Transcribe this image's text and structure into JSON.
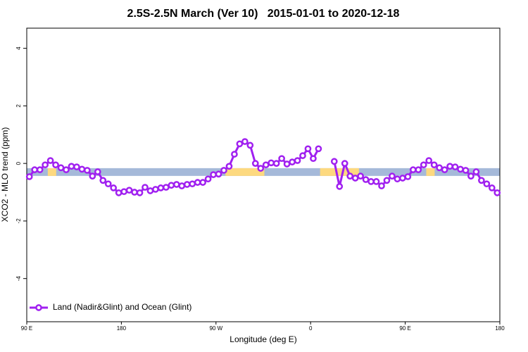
{
  "chart_data": {
    "type": "line",
    "title": "2.5S-2.5N March (Ver 10)   2015-01-01 to 2020-12-18",
    "xlabel": "Longitude (deg E)",
    "ylabel": "XCO2 - MLO trend (ppm)",
    "x": [
      92.5,
      97.5,
      102.5,
      107.5,
      112.5,
      117.5,
      122.5,
      127.5,
      132.5,
      137.5,
      142.5,
      147.5,
      152.5,
      157.5,
      162.5,
      167.5,
      172.5,
      177.5,
      182.5,
      187.5,
      192.5,
      197.5,
      202.5,
      207.5,
      212.5,
      217.5,
      222.5,
      227.5,
      232.5,
      237.5,
      242.5,
      247.5,
      252.5,
      257.5,
      262.5,
      267.5,
      272.5,
      277.5,
      282.5,
      287.5,
      292.5,
      297.5,
      302.5,
      307.5,
      312.5,
      317.5,
      322.5,
      327.5,
      332.5,
      337.5,
      342.5,
      347.5,
      352.5,
      357.5,
      362.5,
      367.5,
      372.5,
      377.5,
      382.5,
      387.5,
      392.5,
      397.5,
      402.5,
      407.5,
      412.5,
      417.5,
      422.5,
      427.5,
      432.5,
      437.5,
      442.5,
      447.5,
      452.5,
      457.5,
      462.5,
      467.5,
      472.5,
      477.5,
      482.5,
      487.5,
      492.5,
      497.5,
      502.5,
      507.5,
      512.5,
      517.5,
      522.5,
      527.5,
      532.5,
      537.5
    ],
    "series": [
      {
        "name": "Land (Nadir&Glint) and Ocean (Glint)",
        "color": "#a020f0",
        "values": [
          -0.46,
          -0.22,
          -0.22,
          -0.05,
          0.1,
          -0.05,
          -0.15,
          -0.22,
          -0.1,
          -0.12,
          -0.2,
          -0.24,
          -0.44,
          -0.29,
          -0.59,
          -0.71,
          -0.85,
          -1.02,
          -0.98,
          -0.93,
          -1.0,
          -1.02,
          -0.83,
          -0.95,
          -0.9,
          -0.85,
          -0.83,
          -0.76,
          -0.73,
          -0.78,
          -0.73,
          -0.71,
          -0.66,
          -0.66,
          -0.54,
          -0.39,
          -0.37,
          -0.24,
          -0.1,
          0.32,
          0.68,
          0.76,
          0.63,
          0,
          -0.17,
          -0.05,
          0.02,
          0,
          0.17,
          -0.02,
          0.05,
          0.1,
          0.27,
          0.51,
          0.17,
          0.51,
          null,
          null,
          0.07,
          -0.8,
          0,
          -0.44,
          -0.51,
          -0.44,
          -0.56,
          -0.63,
          -0.63,
          -0.78,
          -0.59,
          -0.44,
          -0.54,
          -0.51,
          -0.46,
          -0.22,
          -0.22,
          -0.05,
          0.1,
          -0.05,
          -0.15,
          -0.22,
          -0.1,
          -0.12,
          -0.2,
          -0.24,
          -0.44,
          -0.29,
          -0.59,
          -0.71,
          -0.85,
          -1.02
        ]
      }
    ],
    "xlim": [
      90,
      540
    ],
    "ylim": [
      -5.5,
      4.7
    ],
    "xticks": [
      {
        "value": 90,
        "label": "90 E"
      },
      180,
      {
        "value": 270,
        "label": "90 W"
      },
      {
        "value": 360,
        "label": "0"
      },
      {
        "value": 450,
        "label": "90 E"
      },
      {
        "value": 540,
        "label": "180"
      }
    ],
    "yticks": [
      -4,
      -2,
      0,
      2,
      4
    ],
    "legend": "bottomleft",
    "surface_band": {
      "y": -0.3,
      "ocean_color": "#a5b9d9",
      "land_color": "#fdd97f",
      "land": [
        [
          110,
          118
        ],
        [
          279,
          316
        ],
        [
          369,
          406
        ],
        [
          470,
          478
        ]
      ]
    }
  }
}
